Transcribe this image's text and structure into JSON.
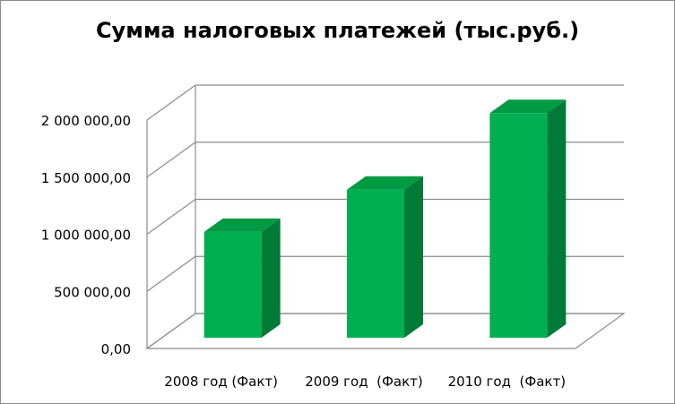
{
  "chart_data": {
    "type": "bar",
    "title": "Сумма налоговых платежей (тыс.руб.)",
    "categories": [
      "2008 год (Факт)",
      "2009 год  (Факт)",
      "2010 год  (Факт)"
    ],
    "values": [
      950000,
      1320000,
      1990000
    ],
    "yticks": [
      "0,00",
      "500 000,00",
      "1 000 000,00",
      "1 500 000,00",
      "2 000 000,00"
    ],
    "ylim": [
      0,
      2000000
    ],
    "xlabel": "",
    "ylabel": "",
    "grid": true,
    "legend": "none",
    "bar_color": "#00b050",
    "bar_side_color": "#007a37",
    "bar_top_color": "#009a43"
  }
}
